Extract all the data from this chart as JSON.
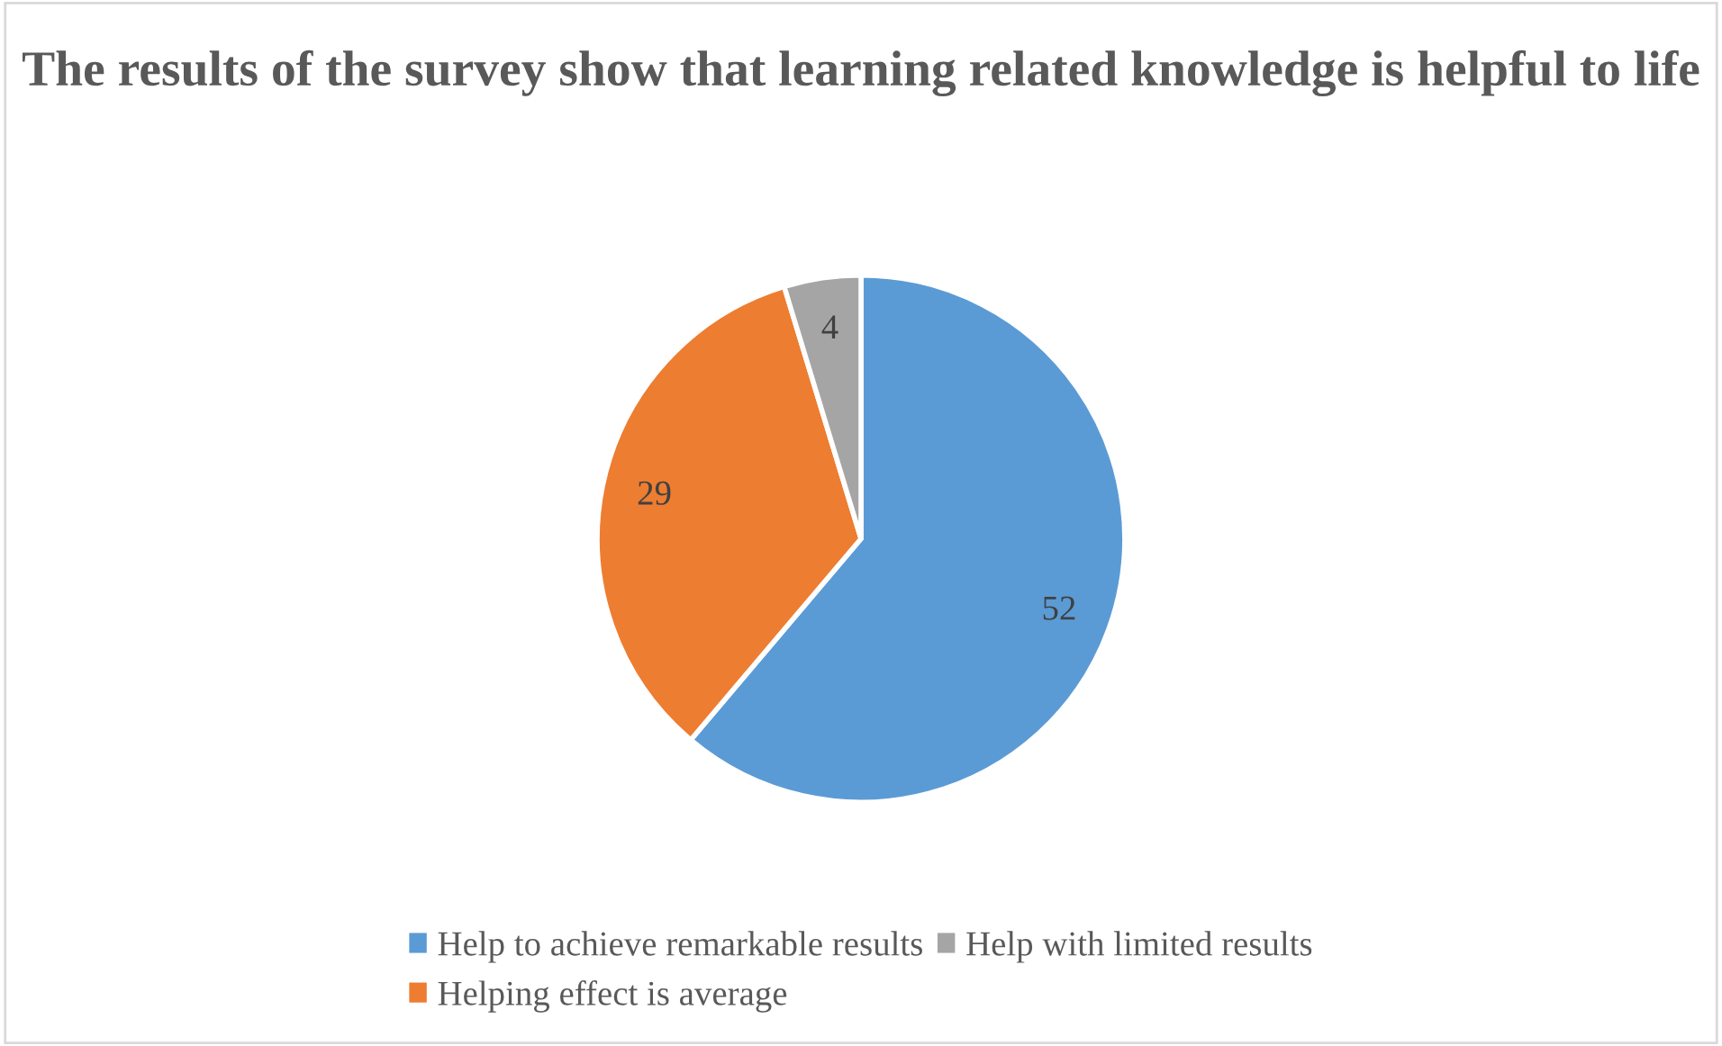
{
  "chart_data": {
    "type": "pie",
    "title": "The results of the survey show that learning related knowledge is helpful to life",
    "categories": [
      "Help to achieve remarkable results",
      "Helping effect is average",
      "Help with limited results"
    ],
    "values": [
      52,
      29,
      4
    ],
    "colors": [
      "#5b9bd5",
      "#ed7d31",
      "#a5a5a5"
    ],
    "data_labels": true,
    "legend": "bottom"
  }
}
